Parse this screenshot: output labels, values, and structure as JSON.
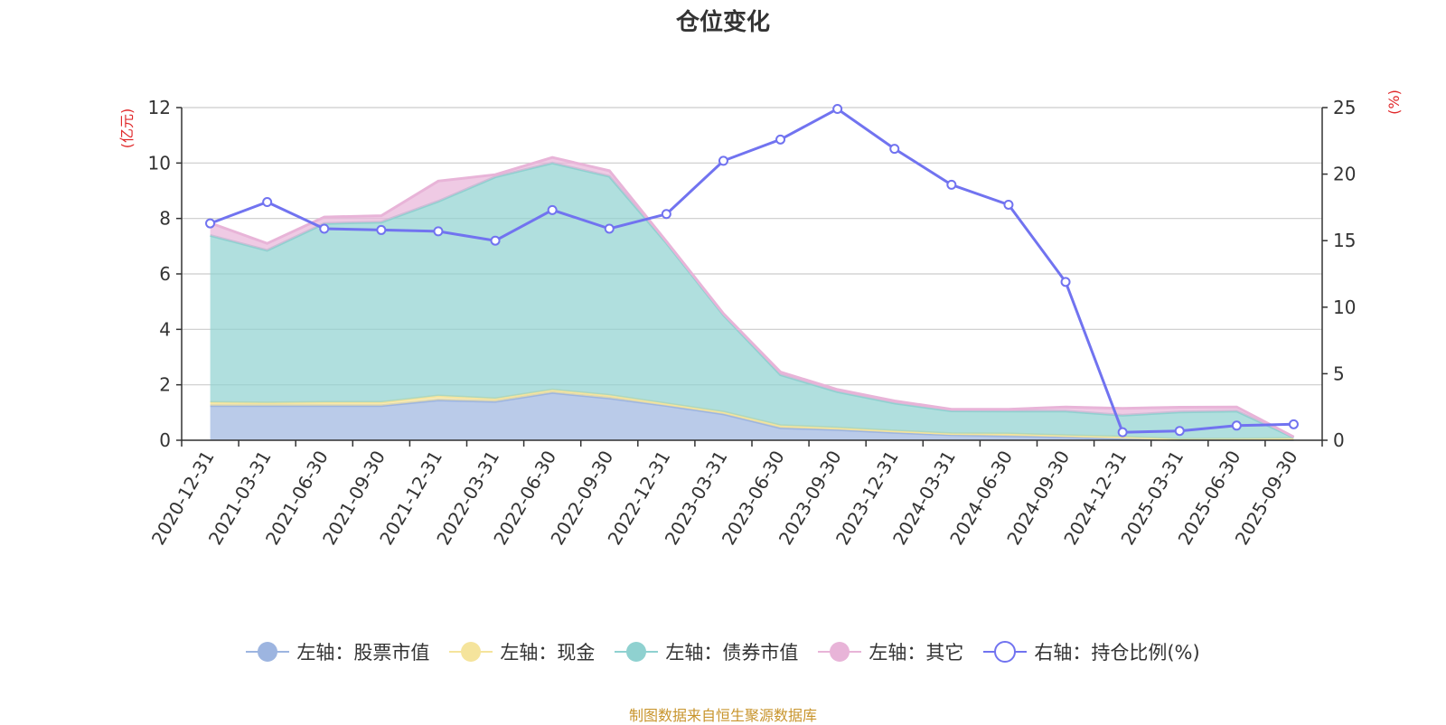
{
  "chart_data": {
    "type": "area",
    "title": "仓位变化",
    "source_note": "制图数据来自恒生聚源数据库",
    "left_axis_unit": "(亿元)",
    "right_axis_unit": "(%)",
    "ylim_left": [
      0,
      12
    ],
    "yticks_left": [
      0,
      2,
      4,
      6,
      8,
      10,
      12
    ],
    "ylim_right": [
      0,
      25
    ],
    "yticks_right": [
      0,
      5,
      10,
      15,
      20,
      25
    ],
    "grid": true,
    "legend_position": "bottom",
    "categories": [
      "2020-12-31",
      "2021-03-31",
      "2021-06-30",
      "2021-09-30",
      "2021-12-31",
      "2022-03-31",
      "2022-06-30",
      "2022-09-30",
      "2022-12-31",
      "2023-03-31",
      "2023-06-30",
      "2023-09-30",
      "2023-12-31",
      "2024-03-31",
      "2024-06-30",
      "2024-09-30",
      "2024-12-31",
      "2025-03-31",
      "2025-06-30",
      "2025-09-30"
    ],
    "colors": {
      "stock": "#9db5e0",
      "cash": "#f5e49c",
      "bond": "#8fd1d0",
      "other": "#e8b4d8",
      "ratio": "#7173f0"
    },
    "series": [
      {
        "key": "stock",
        "name": "左轴：股票市值",
        "axis": "left",
        "type": "area",
        "values": [
          1.25,
          1.25,
          1.25,
          1.25,
          1.45,
          1.4,
          1.72,
          1.52,
          1.25,
          0.95,
          0.45,
          0.38,
          0.28,
          0.2,
          0.16,
          0.12,
          0.06,
          0.02,
          0.02,
          0.02
        ]
      },
      {
        "key": "cash",
        "name": "左轴：现金",
        "axis": "left",
        "type": "area",
        "values": [
          0.12,
          0.1,
          0.12,
          0.12,
          0.15,
          0.1,
          0.1,
          0.1,
          0.07,
          0.07,
          0.08,
          0.07,
          0.06,
          0.04,
          0.07,
          0.05,
          0.06,
          0.02,
          0.03,
          0.05
        ]
      },
      {
        "key": "bond",
        "name": "左轴：债券市值",
        "axis": "left",
        "type": "area",
        "values": [
          6.02,
          5.5,
          6.45,
          6.5,
          7.02,
          8.0,
          8.18,
          7.9,
          5.8,
          3.5,
          1.83,
          1.3,
          1.0,
          0.82,
          0.82,
          0.88,
          0.78,
          0.98,
          1.0,
          0.03
        ]
      },
      {
        "key": "other",
        "name": "左轴：其它",
        "axis": "left",
        "type": "area",
        "values": [
          0.45,
          0.25,
          0.23,
          0.23,
          0.73,
          0.08,
          0.2,
          0.2,
          0.05,
          0.05,
          0.1,
          0.08,
          0.08,
          0.06,
          0.07,
          0.15,
          0.25,
          0.17,
          0.15,
          0.02
        ]
      },
      {
        "key": "ratio",
        "name": "右轴：持仓比例(%)",
        "axis": "right",
        "type": "line",
        "values": [
          16.3,
          17.9,
          15.9,
          15.8,
          15.7,
          15.0,
          17.3,
          15.9,
          17.0,
          21.0,
          22.6,
          24.9,
          21.9,
          19.2,
          17.7,
          11.9,
          0.6,
          0.7,
          1.1,
          1.2
        ]
      }
    ]
  }
}
